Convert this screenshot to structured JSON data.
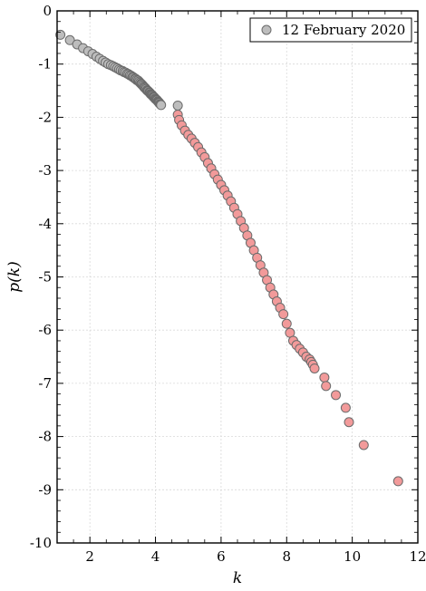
{
  "chart_data": {
    "type": "scatter",
    "xlabel": "k",
    "ylabel": "p(k)",
    "xlim": [
      1,
      12
    ],
    "ylim": [
      -10,
      0
    ],
    "xticks": [
      "2",
      "4",
      "6",
      "8",
      "10",
      "12"
    ],
    "yticks": [
      "0",
      "-1",
      "-2",
      "-3",
      "-4",
      "-5",
      "-6",
      "-7",
      "-8",
      "-9",
      "-10"
    ],
    "grid": true,
    "legend": {
      "position": "top-right",
      "entries": [
        "12 February 2020"
      ]
    },
    "colors": {
      "gray_marker": "#bdbdbd",
      "pink_marker": "#f29a9a",
      "marker_edge": "#6b6b6b",
      "grid": "#d9d9d9"
    },
    "series": [
      {
        "name": "12 February 2020",
        "color": "#bdbdbd",
        "points": [
          [
            1.1,
            -0.45
          ],
          [
            1.39,
            -0.55
          ],
          [
            1.61,
            -0.63
          ],
          [
            1.79,
            -0.7
          ],
          [
            1.95,
            -0.76
          ],
          [
            2.08,
            -0.81
          ],
          [
            2.2,
            -0.86
          ],
          [
            2.3,
            -0.9
          ],
          [
            2.4,
            -0.94
          ],
          [
            2.48,
            -0.97
          ],
          [
            2.56,
            -1.0
          ],
          [
            2.64,
            -1.02
          ],
          [
            2.71,
            -1.04
          ],
          [
            2.77,
            -1.06
          ],
          [
            2.83,
            -1.08
          ],
          [
            2.89,
            -1.1
          ],
          [
            2.94,
            -1.12
          ],
          [
            3.0,
            -1.13
          ],
          [
            3.04,
            -1.15
          ],
          [
            3.09,
            -1.16
          ],
          [
            3.14,
            -1.18
          ],
          [
            3.18,
            -1.19
          ],
          [
            3.22,
            -1.21
          ],
          [
            3.26,
            -1.22
          ],
          [
            3.3,
            -1.24
          ],
          [
            3.33,
            -1.25
          ],
          [
            3.37,
            -1.27
          ],
          [
            3.4,
            -1.28
          ],
          [
            3.43,
            -1.3
          ],
          [
            3.47,
            -1.31
          ],
          [
            3.5,
            -1.33
          ],
          [
            3.53,
            -1.35
          ],
          [
            3.56,
            -1.37
          ],
          [
            3.58,
            -1.38
          ],
          [
            3.61,
            -1.4
          ],
          [
            3.64,
            -1.42
          ],
          [
            3.66,
            -1.44
          ],
          [
            3.69,
            -1.45
          ],
          [
            3.71,
            -1.47
          ],
          [
            3.74,
            -1.49
          ],
          [
            3.76,
            -1.5
          ],
          [
            3.78,
            -1.51
          ],
          [
            3.81,
            -1.53
          ],
          [
            3.83,
            -1.54
          ],
          [
            3.85,
            -1.56
          ],
          [
            3.87,
            -1.57
          ],
          [
            3.89,
            -1.58
          ],
          [
            3.91,
            -1.59
          ],
          [
            3.93,
            -1.61
          ],
          [
            3.95,
            -1.62
          ],
          [
            3.97,
            -1.63
          ],
          [
            3.99,
            -1.65
          ],
          [
            4.01,
            -1.66
          ],
          [
            4.03,
            -1.67
          ],
          [
            4.05,
            -1.68
          ],
          [
            4.07,
            -1.7
          ],
          [
            4.09,
            -1.71
          ],
          [
            4.1,
            -1.72
          ],
          [
            4.12,
            -1.73
          ],
          [
            4.14,
            -1.75
          ],
          [
            4.16,
            -1.76
          ],
          [
            4.17,
            -1.77
          ],
          [
            4.68,
            -1.78
          ]
        ]
      },
      {
        "name": "",
        "color": "#f29a9a",
        "points": [
          [
            4.68,
            -1.95
          ],
          [
            4.72,
            -2.05
          ],
          [
            4.8,
            -2.15
          ],
          [
            4.9,
            -2.25
          ],
          [
            5.0,
            -2.33
          ],
          [
            5.1,
            -2.4
          ],
          [
            5.2,
            -2.48
          ],
          [
            5.3,
            -2.56
          ],
          [
            5.4,
            -2.66
          ],
          [
            5.5,
            -2.75
          ],
          [
            5.6,
            -2.86
          ],
          [
            5.7,
            -2.96
          ],
          [
            5.8,
            -3.07
          ],
          [
            5.9,
            -3.17
          ],
          [
            6.0,
            -3.27
          ],
          [
            6.1,
            -3.37
          ],
          [
            6.2,
            -3.47
          ],
          [
            6.3,
            -3.58
          ],
          [
            6.4,
            -3.7
          ],
          [
            6.5,
            -3.82
          ],
          [
            6.6,
            -3.95
          ],
          [
            6.7,
            -4.08
          ],
          [
            6.8,
            -4.22
          ],
          [
            6.9,
            -4.36
          ],
          [
            7.0,
            -4.5
          ],
          [
            7.1,
            -4.64
          ],
          [
            7.2,
            -4.78
          ],
          [
            7.3,
            -4.92
          ],
          [
            7.4,
            -5.06
          ],
          [
            7.5,
            -5.2
          ],
          [
            7.6,
            -5.33
          ],
          [
            7.7,
            -5.46
          ],
          [
            7.8,
            -5.58
          ],
          [
            7.9,
            -5.7
          ],
          [
            8.0,
            -5.88
          ],
          [
            8.1,
            -6.05
          ],
          [
            8.2,
            -6.2
          ],
          [
            8.3,
            -6.28
          ],
          [
            8.4,
            -6.35
          ],
          [
            8.5,
            -6.42
          ],
          [
            8.6,
            -6.5
          ],
          [
            8.7,
            -6.55
          ],
          [
            8.75,
            -6.6
          ],
          [
            8.8,
            -6.65
          ],
          [
            8.85,
            -6.72
          ],
          [
            9.15,
            -6.89
          ],
          [
            9.2,
            -7.05
          ],
          [
            9.5,
            -7.22
          ],
          [
            9.8,
            -7.46
          ],
          [
            9.9,
            -7.73
          ],
          [
            10.35,
            -8.16
          ],
          [
            11.4,
            -8.84
          ]
        ]
      }
    ]
  }
}
